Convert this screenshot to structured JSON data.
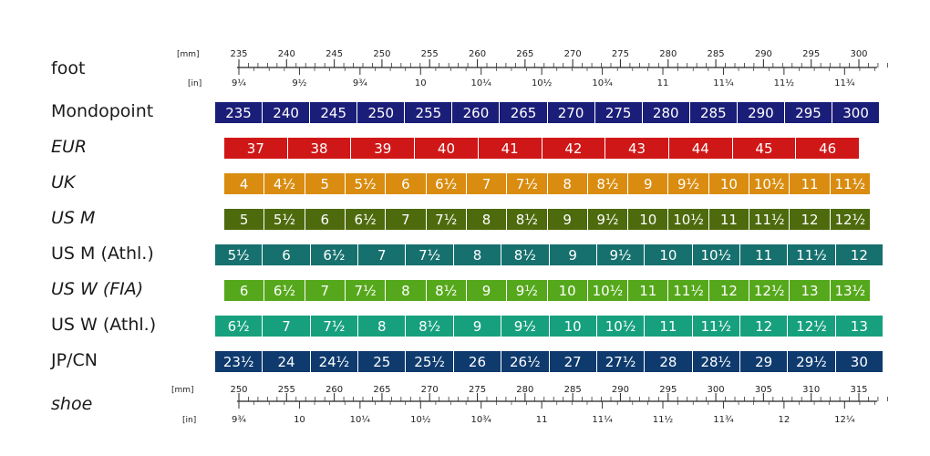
{
  "labels": {
    "foot": "foot",
    "shoe": "shoe",
    "mm": "[mm]",
    "in": "[in]"
  },
  "foot_scale": {
    "mm_labels": [
      "235",
      "240",
      "245",
      "250",
      "255",
      "260",
      "265",
      "270",
      "275",
      "280",
      "285",
      "290",
      "295",
      "300"
    ],
    "in_labels": [
      "9¼",
      "9½",
      "9¾",
      "10",
      "10¼",
      "10½",
      "10¾",
      "11",
      "11¼",
      "11½",
      "11¾"
    ]
  },
  "shoe_scale": {
    "mm_labels": [
      "250",
      "255",
      "260",
      "265",
      "270",
      "275",
      "280",
      "285",
      "290",
      "295",
      "300",
      "305",
      "310",
      "315"
    ],
    "in_labels": [
      "9¾",
      "10",
      "10¼",
      "10½",
      "10¾",
      "11",
      "11¼",
      "11½",
      "11¾",
      "12",
      "12¼"
    ]
  },
  "rows": [
    {
      "label": "Mondopoint",
      "italic": false,
      "color": "#1b1e78",
      "values": [
        "235",
        "240",
        "245",
        "250",
        "255",
        "260",
        "265",
        "270",
        "275",
        "280",
        "285",
        "290",
        "295",
        "300"
      ]
    },
    {
      "label": "EUR",
      "italic": true,
      "color": "#d01717",
      "values": [
        "37",
        "38",
        "39",
        "40",
        "41",
        "42",
        "43",
        "44",
        "45",
        "46"
      ]
    },
    {
      "label": "UK",
      "italic": true,
      "color": "#d98c0f",
      "values": [
        "4",
        "4½",
        "5",
        "5½",
        "6",
        "6½",
        "7",
        "7½",
        "8",
        "8½",
        "9",
        "9½",
        "10",
        "10½",
        "11",
        "11½"
      ]
    },
    {
      "label": "US M",
      "italic": true,
      "color": "#4d6a0d",
      "values": [
        "5",
        "5½",
        "6",
        "6½",
        "7",
        "7½",
        "8",
        "8½",
        "9",
        "9½",
        "10",
        "10½",
        "11",
        "11½",
        "12",
        "12½"
      ]
    },
    {
      "label": "US M (Athl.)",
      "italic": false,
      "color": "#16706e",
      "values": [
        "5½",
        "6",
        "6½",
        "7",
        "7½",
        "8",
        "8½",
        "9",
        "9½",
        "10",
        "10½",
        "11",
        "11½",
        "12"
      ]
    },
    {
      "label": "US W (FIA)",
      "italic": true,
      "color": "#55a81b",
      "values": [
        "6",
        "6½",
        "7",
        "7½",
        "8",
        "8½",
        "9",
        "9½",
        "10",
        "10½",
        "11",
        "11½",
        "12",
        "12½",
        "13",
        "13½"
      ]
    },
    {
      "label": "US W (Athl.)",
      "italic": false,
      "color": "#17a07e",
      "values": [
        "6½",
        "7",
        "7½",
        "8",
        "8½",
        "9",
        "9½",
        "10",
        "10½",
        "11",
        "11½",
        "12",
        "12½",
        "13"
      ]
    },
    {
      "label": "JP/CN",
      "italic": false,
      "color": "#0e3a6e",
      "values": [
        "23½",
        "24",
        "24½",
        "25",
        "25½",
        "26",
        "26½",
        "27",
        "27½",
        "28",
        "28½",
        "29",
        "29½",
        "30"
      ]
    }
  ]
}
